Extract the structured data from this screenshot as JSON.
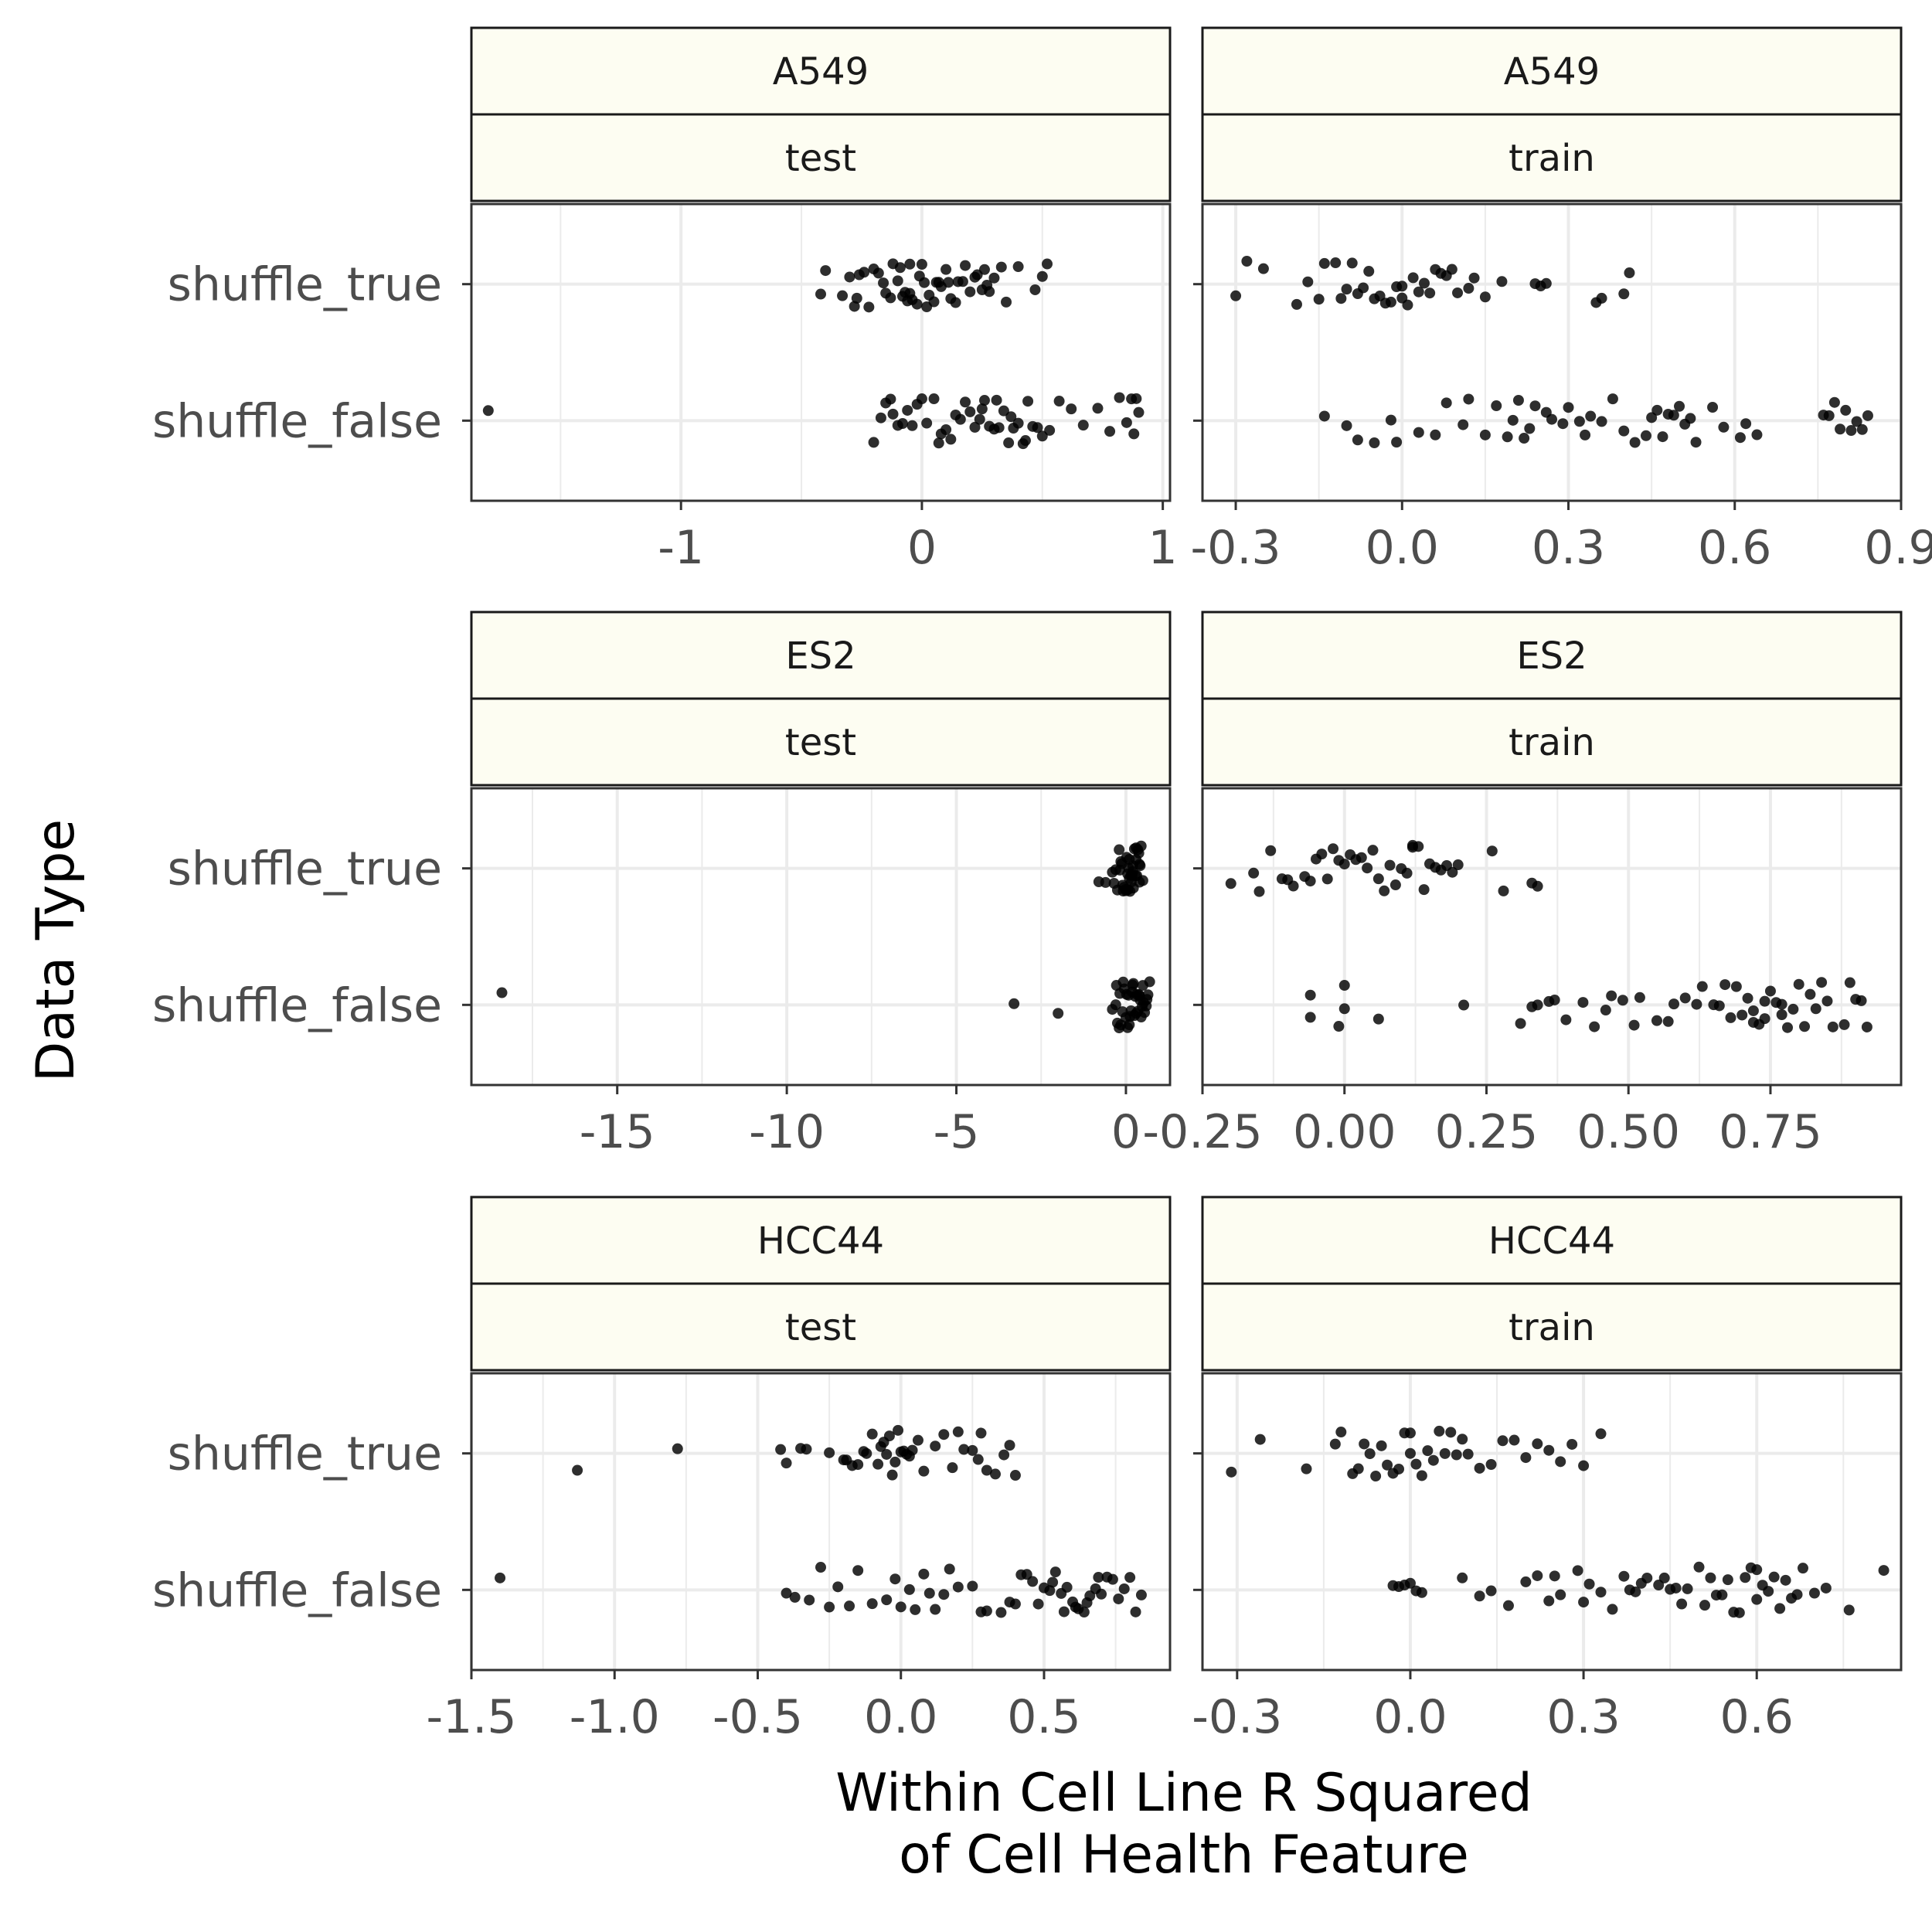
{
  "figure": {
    "ylabel": "Data Type",
    "xlabel_line1": "Within Cell Line R Squared",
    "xlabel_line2": "of Cell Health Feature"
  },
  "chart_data": [
    {
      "type": "scatter",
      "strip_top": "A549",
      "strip_bottom": "test",
      "categories": [
        "shuffle_true",
        "shuffle_false"
      ],
      "xticks": [
        "-1",
        "0",
        "1"
      ],
      "xtick_values": [
        -1,
        0,
        1
      ],
      "xlim": [
        -1.87,
        1.03
      ],
      "grid": true,
      "series": [
        {
          "values": [
            -0.42,
            -0.4,
            -0.33,
            -0.3,
            -0.27,
            -0.26,
            -0.24,
            -0.2,
            -0.18,
            -0.16,
            -0.15,
            -0.13,
            -0.12,
            -0.1,
            -0.08,
            -0.07,
            -0.05,
            -0.05,
            -0.04,
            -0.02,
            -0.01,
            0.0,
            0.01,
            0.03,
            0.05,
            0.07,
            0.08,
            0.1,
            0.12,
            0.14,
            0.15,
            0.17,
            0.18,
            0.2,
            0.22,
            0.23,
            0.25,
            0.27,
            0.28,
            0.3,
            0.33,
            0.35,
            0.4,
            0.47,
            0.5,
            0.52,
            -0.28,
            -0.22,
            -0.06,
            0.06,
            0.11,
            0.26,
            -0.09,
            0.02
          ]
        },
        {
          "values": [
            -1.8,
            -0.2,
            -0.17,
            -0.15,
            -0.13,
            -0.1,
            -0.08,
            -0.06,
            -0.04,
            -0.02,
            0.0,
            0.02,
            0.05,
            0.08,
            0.1,
            0.12,
            0.14,
            0.16,
            0.18,
            0.2,
            0.22,
            0.24,
            0.26,
            0.28,
            0.3,
            0.32,
            0.34,
            0.36,
            0.38,
            0.4,
            0.42,
            0.44,
            0.46,
            0.48,
            0.5,
            0.53,
            0.57,
            0.62,
            0.67,
            0.73,
            0.78,
            0.82,
            0.85,
            0.87,
            0.88,
            0.89,
            0.25,
            0.31,
            0.37,
            0.43,
            -0.12,
            0.07,
            0.9
          ]
        }
      ]
    },
    {
      "type": "scatter",
      "strip_top": "A549",
      "strip_bottom": "train",
      "categories": [
        "shuffle_true",
        "shuffle_false"
      ],
      "xticks": [
        "-0.3",
        "0.0",
        "0.3",
        "0.6",
        "0.9"
      ],
      "xtick_values": [
        -0.3,
        0.0,
        0.3,
        0.6,
        0.9
      ],
      "xlim": [
        -0.36,
        0.9
      ],
      "grid": true,
      "series": [
        {
          "values": [
            -0.3,
            -0.28,
            -0.25,
            -0.19,
            -0.17,
            -0.15,
            -0.14,
            -0.12,
            -0.1,
            -0.09,
            -0.08,
            -0.06,
            -0.05,
            -0.04,
            -0.03,
            -0.02,
            -0.01,
            0.0,
            0.0,
            0.01,
            0.02,
            0.03,
            0.04,
            0.05,
            0.07,
            0.08,
            0.1,
            0.12,
            0.13,
            0.15,
            0.18,
            0.24,
            0.25,
            0.26,
            0.35,
            0.36,
            0.4,
            0.41,
            -0.11,
            -0.07,
            0.06,
            0.09
          ]
        },
        {
          "values": [
            -0.14,
            -0.1,
            -0.08,
            -0.05,
            -0.02,
            -0.01,
            0.03,
            0.06,
            0.08,
            0.11,
            0.12,
            0.15,
            0.17,
            0.19,
            0.21,
            0.22,
            0.23,
            0.24,
            0.26,
            0.27,
            0.29,
            0.3,
            0.32,
            0.34,
            0.36,
            0.38,
            0.4,
            0.42,
            0.44,
            0.45,
            0.46,
            0.47,
            0.48,
            0.49,
            0.5,
            0.51,
            0.52,
            0.53,
            0.56,
            0.58,
            0.61,
            0.62,
            0.64,
            0.76,
            0.77,
            0.78,
            0.79,
            0.8,
            0.81,
            0.82,
            0.83,
            0.84,
            0.2,
            0.33
          ]
        }
      ]
    },
    {
      "type": "scatter",
      "strip_top": "ES2",
      "strip_bottom": "test",
      "categories": [
        "shuffle_true",
        "shuffle_false"
      ],
      "xticks": [
        "-15",
        "-10",
        "-5",
        "0"
      ],
      "xtick_values": [
        -15,
        -10,
        -5,
        0
      ],
      "xlim": [
        -19.3,
        1.3
      ],
      "grid": true,
      "series": [
        {
          "values": [
            -0.8,
            -0.6,
            -0.4,
            -0.3,
            -0.2,
            -0.15,
            -0.1,
            -0.05,
            0.0,
            0.05,
            0.1,
            0.15,
            0.2,
            0.25,
            0.3,
            0.35,
            0.4,
            0.45,
            0.5,
            -0.25,
            -0.12,
            0.02,
            0.08,
            0.18,
            0.28,
            0.38,
            -0.35,
            0.12,
            0.22,
            0.32,
            0.42,
            -0.18,
            0.0,
            0.1,
            0.2,
            0.3,
            0.4,
            -0.08,
            0.06,
            0.16
          ]
        },
        {
          "values": [
            -18.4,
            -3.3,
            -2.0,
            -0.4,
            -0.3,
            -0.25,
            -0.2,
            -0.15,
            -0.1,
            -0.05,
            0.0,
            0.05,
            0.1,
            0.15,
            0.2,
            0.25,
            0.3,
            0.35,
            0.4,
            0.45,
            0.5,
            0.55,
            0.6,
            0.65,
            0.7,
            -0.18,
            -0.08,
            0.02,
            0.12,
            0.22,
            0.32,
            0.42,
            0.52,
            0.62,
            -0.28,
            0.08,
            0.28,
            0.48,
            0.18,
            0.38
          ]
        }
      ]
    },
    {
      "type": "scatter",
      "strip_top": "ES2",
      "strip_bottom": "train",
      "categories": [
        "shuffle_true",
        "shuffle_false"
      ],
      "xticks": [
        "-0.25",
        "0.00",
        "0.25",
        "0.50",
        "0.75"
      ],
      "xtick_values": [
        -0.25,
        0.0,
        0.25,
        0.5,
        0.75
      ],
      "xlim": [
        -0.25,
        0.98
      ],
      "grid": true,
      "series": [
        {
          "values": [
            -0.2,
            -0.16,
            -0.15,
            -0.13,
            -0.1,
            -0.09,
            -0.07,
            -0.06,
            -0.05,
            -0.04,
            -0.03,
            -0.02,
            -0.01,
            0.0,
            0.01,
            0.02,
            0.03,
            0.04,
            0.06,
            0.07,
            0.08,
            0.09,
            0.1,
            0.11,
            0.12,
            0.13,
            0.14,
            0.15,
            0.16,
            0.17,
            0.18,
            0.19,
            0.2,
            0.26,
            0.28,
            0.33,
            0.34,
            -0.11,
            0.05,
            0.12
          ]
        },
        {
          "values": [
            -0.06,
            -0.06,
            -0.01,
            0.0,
            0.0,
            0.06,
            0.21,
            0.31,
            0.33,
            0.34,
            0.36,
            0.37,
            0.39,
            0.42,
            0.44,
            0.46,
            0.47,
            0.49,
            0.51,
            0.52,
            0.55,
            0.57,
            0.58,
            0.6,
            0.62,
            0.63,
            0.65,
            0.66,
            0.68,
            0.69,
            0.7,
            0.71,
            0.72,
            0.73,
            0.74,
            0.75,
            0.76,
            0.77,
            0.78,
            0.79,
            0.8,
            0.81,
            0.82,
            0.83,
            0.85,
            0.86,
            0.88,
            0.89,
            0.9,
            0.91,
            0.92,
            0.67,
            0.72,
            0.77,
            0.84,
            0.74
          ]
        }
      ]
    },
    {
      "type": "scatter",
      "strip_top": "HCC44",
      "strip_bottom": "test",
      "categories": [
        "shuffle_true",
        "shuffle_false"
      ],
      "xticks": [
        "-1.5",
        "-1.0",
        "-0.5",
        "0.0",
        "0.5"
      ],
      "xtick_values": [
        -1.5,
        -1.0,
        -0.5,
        0.0,
        0.5
      ],
      "xlim": [
        -1.5,
        0.94
      ],
      "grid": true,
      "series": [
        {
          "values": [
            -1.13,
            -0.78,
            -0.42,
            -0.4,
            -0.35,
            -0.33,
            -0.25,
            -0.2,
            -0.19,
            -0.17,
            -0.15,
            -0.12,
            -0.1,
            -0.08,
            -0.07,
            -0.05,
            -0.04,
            -0.03,
            -0.02,
            -0.01,
            0.0,
            0.01,
            0.02,
            0.03,
            0.04,
            0.08,
            0.15,
            0.18,
            0.2,
            0.22,
            0.25,
            0.27,
            0.3,
            0.33,
            0.36,
            0.38,
            0.4,
            -0.13,
            -0.06,
            0.06,
            0.12,
            0.28
          ]
        },
        {
          "values": [
            -1.4,
            -0.4,
            -0.37,
            -0.32,
            -0.28,
            -0.25,
            -0.22,
            -0.18,
            -0.15,
            -0.1,
            -0.05,
            -0.02,
            0.0,
            0.03,
            0.05,
            0.08,
            0.1,
            0.12,
            0.15,
            0.17,
            0.2,
            0.25,
            0.28,
            0.3,
            0.35,
            0.38,
            0.4,
            0.42,
            0.44,
            0.46,
            0.48,
            0.5,
            0.52,
            0.54,
            0.56,
            0.58,
            0.6,
            0.62,
            0.64,
            0.66,
            0.68,
            0.7,
            0.72,
            0.74,
            0.76,
            0.78,
            0.8,
            0.82,
            0.84,
            0.53,
            0.57,
            0.61,
            0.65,
            0.69
          ]
        }
      ]
    },
    {
      "type": "scatter",
      "strip_top": "HCC44",
      "strip_bottom": "train",
      "categories": [
        "shuffle_true",
        "shuffle_false"
      ],
      "xticks": [
        "-0.3",
        "0.0",
        "0.3",
        "0.6"
      ],
      "xtick_values": [
        -0.3,
        0.0,
        0.3,
        0.6
      ],
      "xlim": [
        -0.36,
        0.85
      ],
      "grid": true,
      "series": [
        {
          "values": [
            -0.31,
            -0.26,
            -0.18,
            -0.13,
            -0.12,
            -0.1,
            -0.08,
            -0.07,
            -0.06,
            -0.05,
            -0.04,
            -0.03,
            -0.02,
            -0.01,
            0.0,
            0.01,
            0.02,
            0.03,
            0.04,
            0.05,
            0.06,
            0.07,
            0.08,
            0.1,
            0.12,
            0.14,
            0.16,
            0.18,
            0.2,
            0.22,
            0.24,
            0.26,
            0.28,
            0.3,
            0.33,
            -0.09,
            0.0,
            0.09
          ]
        },
        {
          "values": [
            -0.03,
            -0.02,
            -0.01,
            0.0,
            0.01,
            0.02,
            0.09,
            0.12,
            0.14,
            0.17,
            0.2,
            0.22,
            0.24,
            0.25,
            0.26,
            0.29,
            0.3,
            0.31,
            0.33,
            0.35,
            0.37,
            0.38,
            0.4,
            0.41,
            0.43,
            0.45,
            0.46,
            0.47,
            0.48,
            0.5,
            0.51,
            0.52,
            0.53,
            0.55,
            0.56,
            0.57,
            0.58,
            0.59,
            0.6,
            0.61,
            0.62,
            0.63,
            0.64,
            0.65,
            0.66,
            0.67,
            0.68,
            0.7,
            0.72,
            0.76,
            0.82,
            0.39,
            0.44,
            0.54,
            0.6
          ]
        }
      ]
    }
  ]
}
